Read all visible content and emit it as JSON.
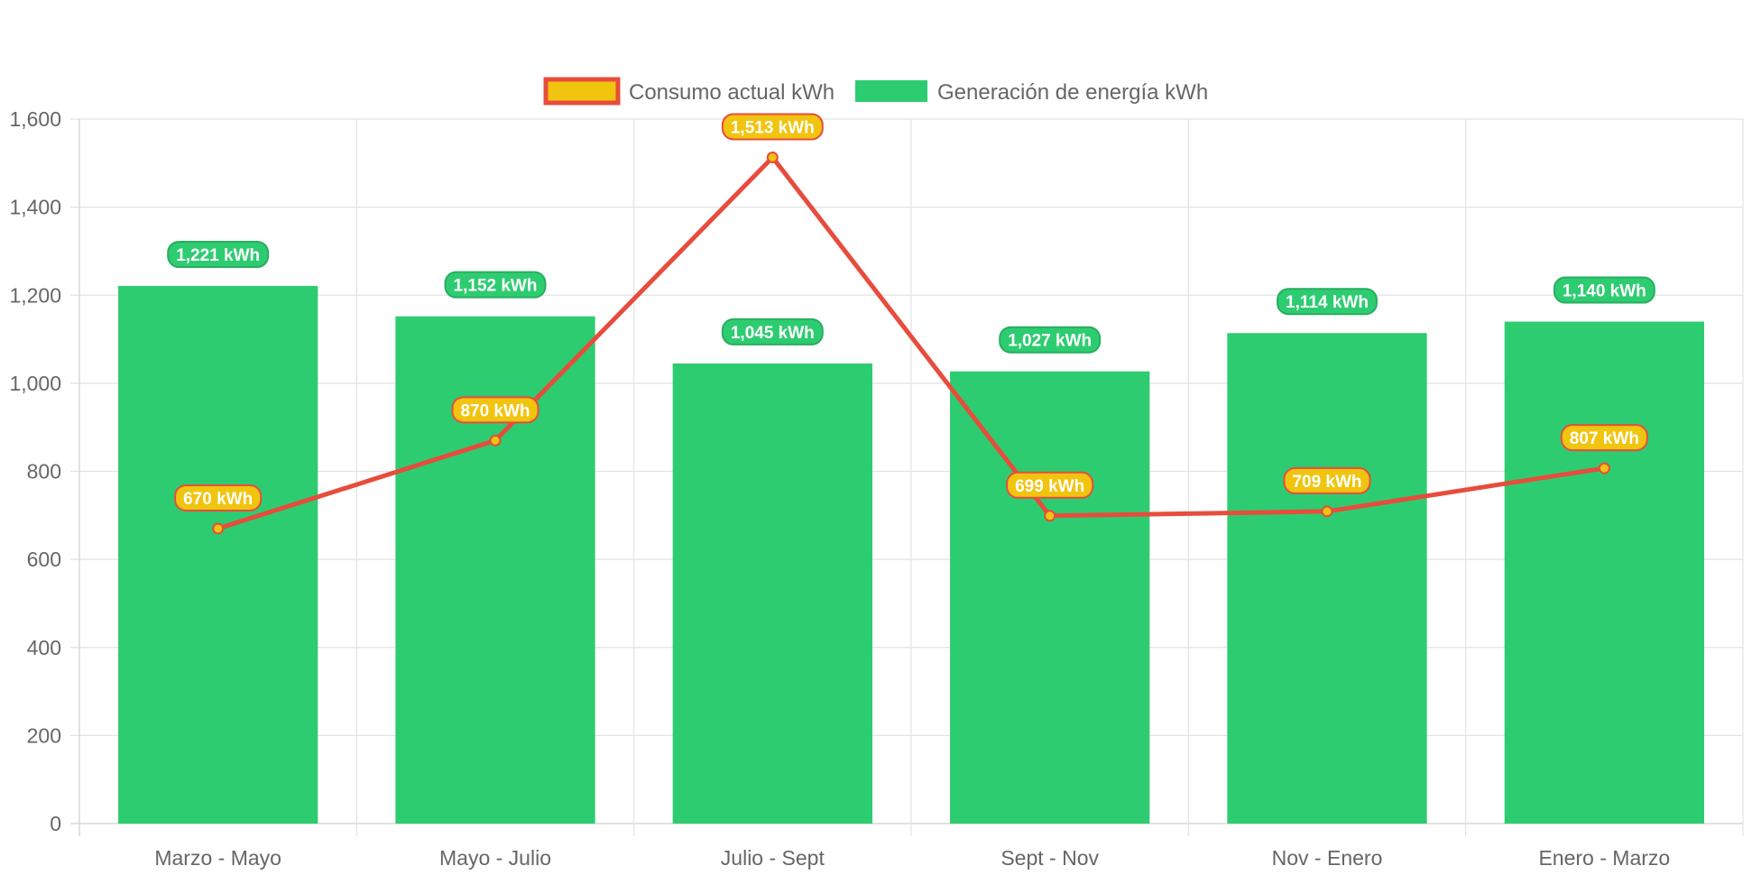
{
  "chart_data": {
    "type": "bar",
    "categories": [
      "Marzo - Mayo",
      "Mayo - Julio",
      "Julio - Sept",
      "Sept - Nov",
      "Nov - Enero",
      "Enero - Marzo"
    ],
    "series": [
      {
        "name": "Consumo actual kWh",
        "type": "line",
        "values": [
          670,
          870,
          1513,
          699,
          709,
          807
        ],
        "labels": [
          "670 kWh",
          "870 kWh",
          "1,513 kWh",
          "699 kWh",
          "709 kWh",
          "807 kWh"
        ],
        "color": "#e74c3c",
        "fill": "#f1c40f"
      },
      {
        "name": "Generación de energía kWh",
        "type": "bar",
        "values": [
          1221,
          1152,
          1045,
          1027,
          1114,
          1140
        ],
        "labels": [
          "1,221 kWh",
          "1,152 kWh",
          "1,045 kWh",
          "1,027 kWh",
          "1,114 kWh",
          "1,140 kWh"
        ],
        "color": "#2ecc71",
        "border": "#27ae60"
      }
    ],
    "yticks": [
      "0",
      "200",
      "400",
      "600",
      "800",
      "1,000",
      "1,200",
      "1,400",
      "1,600"
    ],
    "ylim": [
      0,
      1600
    ],
    "grid": true,
    "legend": "top-center"
  }
}
